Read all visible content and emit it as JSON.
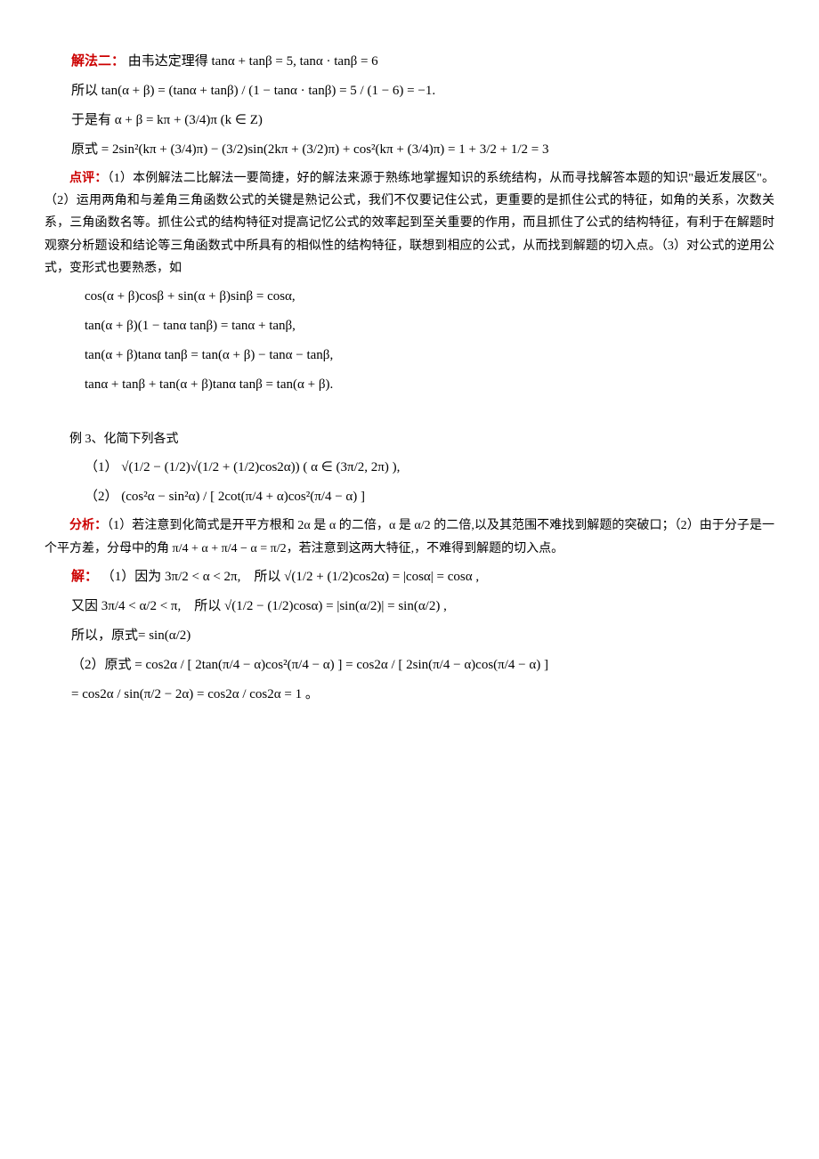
{
  "colors": {
    "text": "#000000",
    "red_label": "#cc0000",
    "background": "#ffffff"
  },
  "typography": {
    "body_font": "SimSun / 宋体",
    "formula_font": "Times New Roman",
    "body_size_pt": 14,
    "formula_size_pt": 15
  },
  "section1": {
    "label": "解法二：",
    "line1": "由韦达定理得 tanα + tanβ = 5, tanα · tanβ = 6",
    "line2": "所以 tan(α + β) = (tanα + tanβ) / (1 − tanα · tanβ) = 5 / (1 − 6) = −1.",
    "line3": "于是有 α + β = kπ + (3/4)π (k ∈ Z)",
    "line4": "原式 = 2sin²(kπ + (3/4)π) − (3/2)sin(2kπ + (3/2)π) + cos²(kπ + (3/4)π) = 1 + 3/2 + 1/2 = 3"
  },
  "section2": {
    "label": "点评：",
    "body": "（1）本例解法二比解法一要简捷，好的解法来源于熟练地掌握知识的系统结构，从而寻找解答本题的知识\"最近发展区\"。（2）运用两角和与差角三角函数公式的关键是熟记公式，我们不仅要记住公式，更重要的是抓住公式的特征，如角的关系，次数关系，三角函数名等。抓住公式的结构特征对提高记忆公式的效率起到至关重要的作用，而且抓住了公式的结构特征，有利于在解题时观察分析题设和结论等三角函数式中所具有的相似性的结构特征，联想到相应的公式，从而找到解题的切入点。（3）对公式的逆用公式，变形式也要熟悉，如",
    "eq1": "cos(α + β)cosβ + sin(α + β)sinβ = cosα,",
    "eq2": "tan(α + β)(1 − tanα tanβ) = tanα + tanβ,",
    "eq3": "tan(α + β)tanα tanβ = tan(α + β) − tanα − tanβ,",
    "eq4": "tanα + tanβ + tan(α + β)tanα tanβ = tan(α + β)."
  },
  "section3": {
    "title": "例 3、化简下列各式",
    "item1_label": "（1）",
    "item1_expr": "√(1/2 − (1/2)√(1/2 + (1/2)cos2α)) ( α ∈ (3π/2, 2π) ),",
    "item2_label": "（2）",
    "item2_expr": "(cos²α − sin²α) / [ 2cot(π/4 + α)cos²(π/4 − α) ]"
  },
  "section4": {
    "label": "分析：",
    "body": "（1）若注意到化简式是开平方根和 2α 是 α 的二倍，α 是 α/2 的二倍,以及其范围不难找到解题的突破口；（2）由于分子是一个平方差，分母中的角 π/4 + α + π/4 − α = π/2，若注意到这两大特征,，不难得到解题的切入点。"
  },
  "section5": {
    "label": "解：",
    "line1": "（1）因为 3π/2 < α < 2π,　所以 √(1/2 + (1/2)cos2α) = |cosα| = cosα ,",
    "line2": "又因 3π/4 < α/2 < π,　所以 √(1/2 − (1/2)cosα) = |sin(α/2)| = sin(α/2) ,",
    "line3": "所以，原式= sin(α/2)",
    "line4": "（2）原式 = cos2α / [ 2tan(π/4 − α)cos²(π/4 − α) ] = cos2α / [ 2sin(π/4 − α)cos(π/4 − α) ]",
    "line5": "= cos2α / sin(π/2 − 2α) = cos2α / cos2α = 1 。"
  }
}
